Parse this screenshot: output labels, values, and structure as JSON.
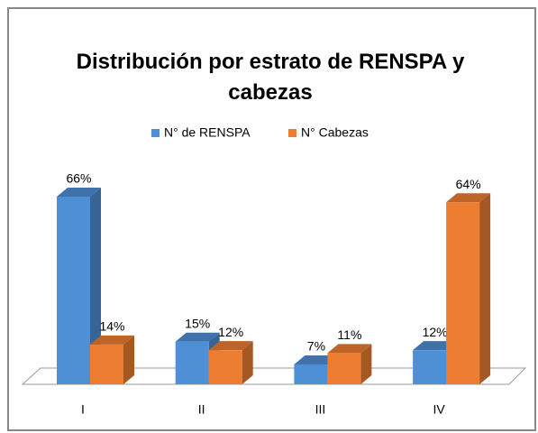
{
  "chart_data": {
    "type": "bar3d",
    "title": "Distribución por estrato de RENSPA  y cabezas",
    "categories": [
      "I",
      "II",
      "III",
      "IV"
    ],
    "series": [
      {
        "name": "N° de RENSPA",
        "color": "#4f8fd6",
        "values": [
          66,
          15,
          7,
          12
        ],
        "value_labels": [
          "66%",
          "15%",
          "7%",
          "12%"
        ]
      },
      {
        "name": "N° Cabezas",
        "color": "#ed7d31",
        "values": [
          14,
          12,
          11,
          64
        ],
        "value_labels": [
          "14%",
          "12%",
          "11%",
          "64%"
        ]
      }
    ],
    "ylim": [
      0,
      66
    ],
    "legend": "top"
  }
}
